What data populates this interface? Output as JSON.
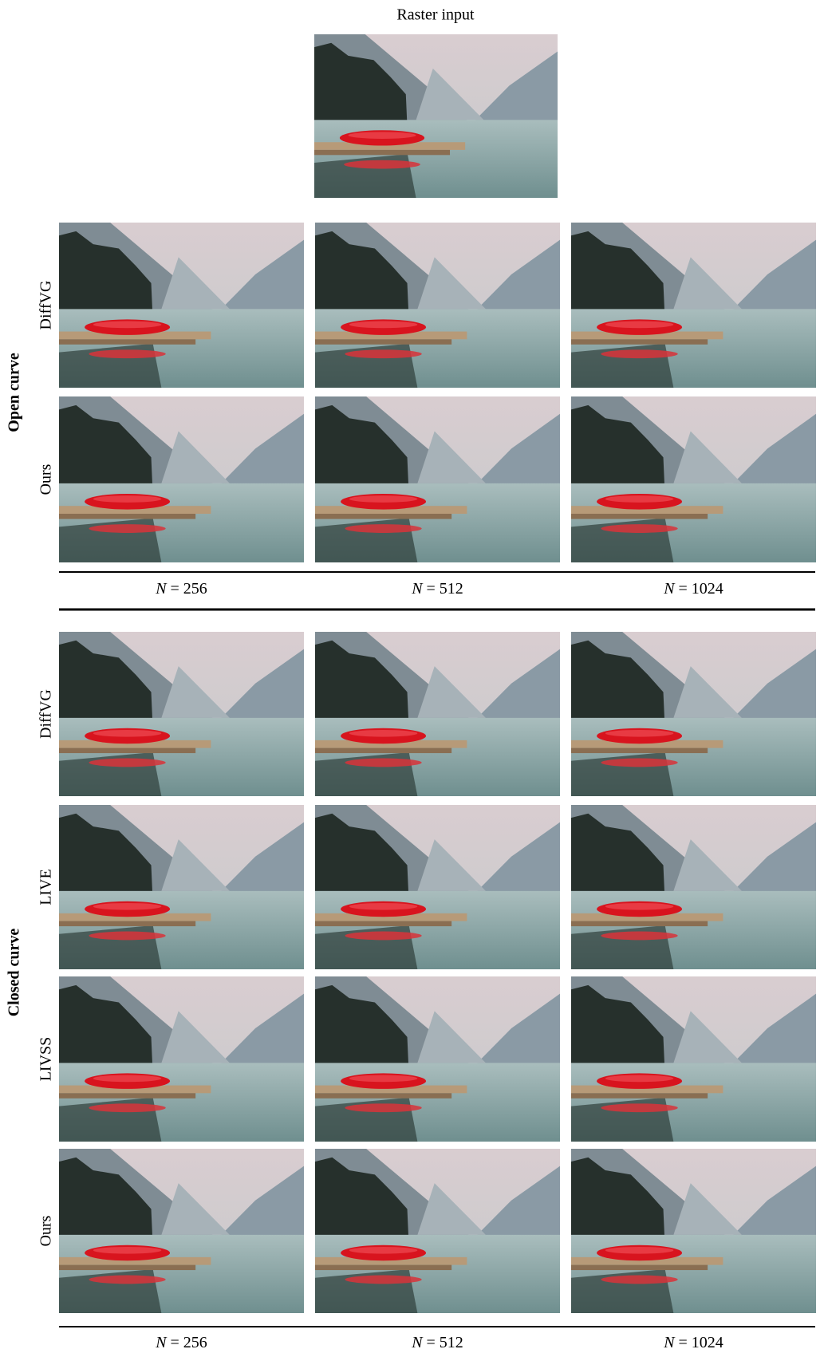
{
  "header": {
    "title": "Raster input"
  },
  "groups": [
    {
      "label": "Open curve",
      "rows": [
        {
          "label": "DiffVG"
        },
        {
          "label": "Ours"
        }
      ],
      "columns": [
        {
          "symbol": "N",
          "text": "= 256"
        },
        {
          "symbol": "N",
          "text": "= 512"
        },
        {
          "symbol": "N",
          "text": "= 1024"
        }
      ]
    },
    {
      "label": "Closed curve",
      "rows": [
        {
          "label": "DiffVG"
        },
        {
          "label": "LIVE"
        },
        {
          "label": "LIVSS"
        },
        {
          "label": "Ours"
        }
      ],
      "columns": [
        {
          "symbol": "N",
          "text": "= 256"
        },
        {
          "symbol": "N",
          "text": "= 512"
        },
        {
          "symbol": "N",
          "text": "= 1024"
        }
      ]
    }
  ]
}
